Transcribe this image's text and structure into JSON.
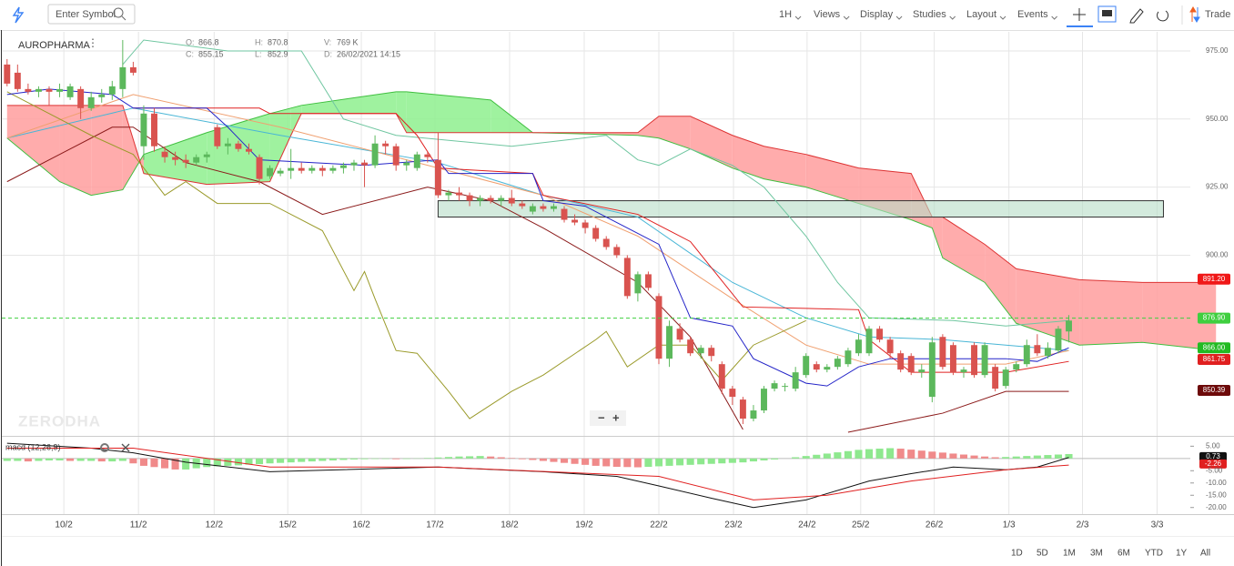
{
  "toolbar": {
    "search": "Enter Symbol",
    "menus": [
      "1H",
      "Views",
      "Display",
      "Studies",
      "Layout",
      "Events"
    ],
    "trade": "Trade"
  },
  "header": {
    "symbol": "AUROPHARMA",
    "fields": [
      {
        "key": "O:",
        "value": 866.8
      },
      {
        "key": "C:",
        "value": 855.15
      },
      {
        "key": "H:",
        "value": 870.8
      },
      {
        "key": "L:",
        "value": 852.9
      },
      {
        "key": "V:",
        "value": "769 K"
      },
      {
        "key": "D:",
        "value": "26/02/2021 14:15"
      }
    ]
  },
  "watermark": "ZERODHA",
  "ranges": [
    "1D",
    "5D",
    "1M",
    "3M",
    "6M",
    "YTD",
    "1Y",
    "All"
  ],
  "chart_data": {
    "type": "candlestick",
    "up_color": "#5cb85c",
    "down_color": "#d9534f",
    "xlim": [
      -0.5,
      115.5
    ],
    "ylim": [
      834,
      982
    ],
    "grid": true,
    "xticks": [
      {
        "value": 5.4,
        "label": "10/2"
      },
      {
        "value": 12.5,
        "label": "11/2"
      },
      {
        "value": 19.7,
        "label": "12/2"
      },
      {
        "value": 26.7,
        "label": "15/2"
      },
      {
        "value": 33.7,
        "label": "16/2"
      },
      {
        "value": 40.7,
        "label": "17/2"
      },
      {
        "value": 47.8,
        "label": "18/2"
      },
      {
        "value": 54.9,
        "label": "19/2"
      },
      {
        "value": 62.0,
        "label": "22/2"
      },
      {
        "value": 69.1,
        "label": "23/2"
      },
      {
        "value": 76.1,
        "label": "24/2"
      },
      {
        "value": 81.2,
        "label": "25/2"
      },
      {
        "value": 88.2,
        "label": "26/2"
      },
      {
        "value": 95.3,
        "label": "1/3"
      },
      {
        "value": 102.3,
        "label": "2/3"
      },
      {
        "value": 109.4,
        "label": "3/3"
      }
    ],
    "yticks": [
      {
        "value": 975,
        "label": "975.00"
      },
      {
        "value": 950,
        "label": "950.00"
      },
      {
        "value": 925,
        "label": "925.00"
      },
      {
        "value": 900,
        "label": "900.00"
      }
    ],
    "open": [
      970,
      967,
      961,
      960,
      961,
      960,
      958,
      961,
      954,
      958,
      959,
      961,
      969,
      940,
      952,
      938,
      936,
      935,
      934,
      936,
      947,
      940,
      941,
      939,
      936,
      929,
      930,
      931,
      932,
      931,
      932,
      931,
      932,
      933,
      934,
      933,
      941,
      940,
      933,
      932,
      937,
      935,
      922,
      923,
      922,
      920,
      921,
      920,
      921,
      919,
      916,
      918,
      917,
      917,
      913,
      912,
      910,
      906,
      903,
      899,
      886,
      893,
      885,
      862,
      873,
      869,
      864,
      866,
      860,
      851,
      847,
      840,
      843,
      851,
      852,
      851,
      856,
      860,
      858,
      859,
      860,
      864,
      864,
      873,
      869,
      864,
      863,
      857,
      848,
      870,
      867,
      857,
      867,
      856,
      859,
      852,
      858,
      860,
      867,
      863,
      865,
      872
    ],
    "high": [
      972,
      970,
      963,
      962,
      962,
      963,
      963,
      962,
      960,
      961,
      964,
      979,
      971,
      955,
      954,
      940,
      938,
      937,
      937,
      938,
      948,
      943,
      942,
      941,
      937,
      933,
      932,
      939,
      934,
      933,
      933,
      933,
      934,
      935,
      935,
      944,
      942,
      941,
      935,
      938,
      938,
      945,
      924,
      925,
      923,
      922,
      922,
      922,
      924,
      920,
      919,
      919,
      919,
      918,
      915,
      913,
      911,
      907,
      904,
      900,
      894,
      894,
      886,
      876,
      875,
      870,
      867,
      867,
      861,
      852,
      848,
      845,
      852,
      854,
      853,
      859,
      864,
      861,
      860,
      863,
      866,
      871,
      874,
      874,
      870,
      865,
      864,
      860,
      870,
      871,
      868,
      859,
      868,
      868,
      860,
      859,
      861,
      869,
      871,
      868,
      874,
      878
    ],
    "low": [
      962,
      960,
      959,
      958,
      955,
      958,
      957,
      950,
      953,
      956,
      957,
      958,
      966,
      935,
      938,
      934,
      933,
      932,
      933,
      934,
      939,
      937,
      938,
      937,
      926,
      928,
      929,
      928,
      930,
      930,
      929,
      930,
      930,
      931,
      925,
      932,
      937,
      931,
      931,
      931,
      934,
      921,
      920,
      920,
      918,
      918,
      919,
      918,
      918,
      917,
      915,
      916,
      916,
      912,
      911,
      908,
      905,
      902,
      899,
      884,
      883,
      887,
      860,
      859,
      868,
      863,
      862,
      861,
      849,
      845,
      838,
      839,
      842,
      850,
      850,
      850,
      855,
      857,
      857,
      858,
      859,
      863,
      863,
      868,
      862,
      857,
      856,
      855,
      846,
      858,
      856,
      855,
      855,
      855,
      850,
      851,
      857,
      859,
      863,
      862,
      864,
      868
    ],
    "close": [
      963,
      961,
      960,
      961,
      960,
      961,
      962,
      954,
      958,
      959,
      962,
      969,
      967,
      952,
      940,
      936,
      935,
      934,
      936,
      937,
      940,
      941,
      939,
      938,
      928,
      932,
      931,
      932,
      931,
      932,
      931,
      932,
      933,
      934,
      933,
      941,
      940,
      933,
      934,
      937,
      936,
      922,
      923,
      922,
      920,
      921,
      920,
      921,
      919,
      918,
      918,
      917,
      918,
      913,
      912,
      910,
      906,
      903,
      900,
      885,
      893,
      888,
      862,
      874,
      869,
      864,
      866,
      863,
      851,
      848,
      840,
      843,
      851,
      853,
      852,
      857,
      863,
      858,
      859,
      862,
      865,
      869,
      873,
      869,
      864,
      858,
      857,
      858,
      868,
      859,
      857,
      858,
      856,
      867,
      851,
      858,
      860,
      867,
      864,
      866,
      873,
      876
    ],
    "cloud": {
      "up_color": "#8ef08e",
      "down_color": "#ff9d9d",
      "a_color": "#3fbf3f",
      "b_color": "#d33",
      "x": [
        0,
        5,
        8,
        11,
        13,
        19,
        25,
        27,
        28,
        37,
        38,
        46,
        50,
        60,
        62,
        65,
        69,
        72,
        76,
        81,
        86,
        88,
        89,
        93,
        96,
        102,
        108,
        115
      ],
      "span_a": [
        943,
        927,
        922,
        924,
        937,
        945,
        952,
        954,
        955,
        960,
        960,
        957,
        945,
        944,
        943,
        939,
        932,
        928,
        925,
        919,
        913,
        910,
        899,
        890,
        875,
        867,
        868,
        865
      ],
      "span_b": [
        955,
        955,
        955,
        955,
        930,
        926,
        927,
        944,
        952,
        952,
        945,
        945,
        945,
        945,
        951,
        951,
        944,
        940,
        937,
        932,
        930,
        914,
        914,
        904,
        895,
        891,
        890,
        890
      ]
    },
    "overlays": [
      {
        "color": "#6fc6a0",
        "x": [
          11,
          13,
          21,
          28,
          32,
          37,
          48,
          57,
          60,
          62,
          65,
          69,
          72,
          76,
          79,
          82,
          90,
          95,
          101
        ],
        "values": [
          970,
          979,
          975,
          975,
          950,
          944,
          940,
          944,
          935,
          933,
          939,
          933,
          925,
          907,
          890,
          877,
          876,
          874,
          876
        ]
      },
      {
        "color": "#49b6d6",
        "x": [
          0,
          12,
          26,
          41,
          51,
          60,
          69,
          76,
          82,
          89,
          95,
          101
        ],
        "values": [
          943,
          954,
          944,
          934,
          922,
          914,
          890,
          877,
          870,
          869,
          867,
          865
        ]
      },
      {
        "color": "#f0a070",
        "x": [
          0,
          12,
          26,
          41,
          51,
          60,
          69,
          76,
          82,
          95,
          101
        ],
        "values": [
          943,
          959,
          947,
          932,
          922,
          907,
          884,
          867,
          860,
          860,
          865
        ]
      },
      {
        "color": "#8b1a1a",
        "x": [
          0,
          5,
          10,
          12,
          17,
          24,
          30,
          40,
          46,
          51,
          60,
          65,
          70,
          75,
          80,
          89,
          95,
          101
        ],
        "values": [
          927,
          937,
          947,
          947,
          934,
          927,
          915,
          925,
          920,
          910,
          890,
          870,
          836,
          null,
          835,
          842,
          850,
          850
        ]
      },
      {
        "color": "#9a9a2a",
        "x": [
          0,
          8,
          12,
          15,
          17,
          20,
          25,
          30,
          33,
          34,
          35,
          37,
          39,
          42,
          44,
          48,
          51,
          56,
          57,
          59,
          62,
          65,
          68,
          71,
          76
        ],
        "values": [
          960,
          944,
          937,
          922,
          927,
          919,
          919,
          909,
          887,
          894,
          884,
          865,
          864,
          850,
          840,
          850,
          856,
          869,
          872,
          859,
          867,
          867,
          854,
          867,
          876
        ]
      },
      {
        "color": "#e02020",
        "x": [
          12,
          24,
          25,
          37,
          39,
          41,
          50,
          51,
          60,
          65,
          70,
          81,
          82,
          86,
          95,
          101
        ],
        "values": [
          954,
          954,
          952,
          952,
          944,
          932,
          930,
          922,
          915,
          905,
          881,
          880,
          869,
          857,
          857,
          861
        ]
      },
      {
        "color": "#2424c8",
        "x": [
          0,
          4,
          10,
          12,
          19,
          21,
          24,
          34,
          41,
          42,
          50,
          51,
          55,
          58,
          62,
          65,
          69,
          71,
          76,
          78,
          81,
          84,
          89,
          95,
          98,
          101
        ],
        "values": [
          959,
          961,
          959,
          954,
          954,
          947,
          935,
          933,
          935,
          930,
          930,
          920,
          918,
          912,
          904,
          877,
          874,
          862,
          853,
          852,
          859,
          862,
          862,
          862,
          861,
          866
        ]
      }
    ],
    "zones": [
      {
        "color": "#b5dcc6",
        "x": [
          41,
          110
        ],
        "y": [
          914,
          920
        ]
      }
    ],
    "price_labels": [
      {
        "value": 891.2,
        "label": "891.20",
        "color": "#f01818"
      },
      {
        "value": 876.9,
        "label": "876.90",
        "color": "#3fcf3f",
        "dashed": true
      },
      {
        "value": 866,
        "label": "866.00",
        "color": "#22bb22"
      },
      {
        "value": 861.75,
        "label": "861.75",
        "color": "#e02020"
      },
      {
        "value": 850.39,
        "label": "850.39",
        "color": "#6d0a0a"
      }
    ],
    "macd": {
      "title": "macd (12,26,9)",
      "ylim": [
        -22.7,
        8.1
      ],
      "yticks": [
        {
          "value": 5,
          "label": "5.00"
        },
        {
          "value": -5,
          "label": "-5.00"
        },
        {
          "value": -10,
          "label": "-10.00"
        },
        {
          "value": -15,
          "label": "-15.00"
        },
        {
          "value": -20,
          "label": "-20.00"
        }
      ],
      "line": {
        "color": "#111",
        "x": [
          0,
          8,
          12,
          17,
          25,
          41,
          51,
          58,
          62,
          67,
          71,
          76,
          82,
          86,
          90,
          95,
          98,
          101
        ],
        "values": [
          6.2,
          4.2,
          2.3,
          -1.5,
          -5.4,
          -3.5,
          -5.4,
          -7.3,
          -11.2,
          -16.2,
          -20,
          -16.9,
          -9.2,
          -6.2,
          -3.5,
          -4.6,
          -3.5,
          0.4
        ]
      },
      "signal": {
        "color": "#e02020",
        "x": [
          0,
          12,
          25,
          41,
          62,
          71,
          78,
          86,
          95,
          101
        ],
        "values": [
          4.2,
          4.2,
          -3.5,
          -3.5,
          -7.3,
          -16.9,
          -15,
          -9.2,
          -4.6,
          -2.7
        ]
      },
      "hist_up_color": "#8ee88e",
      "hist_down_color": "#f08a8a",
      "hist": [
        -1,
        -1,
        -1.2,
        -1,
        -0.8,
        -0.8,
        -1,
        -1,
        -1,
        -1.2,
        -1.2,
        -1,
        -2,
        -3,
        -3.5,
        -4,
        -4.5,
        -4.5,
        -4,
        -3.5,
        -3.2,
        -3,
        -2.8,
        -2.5,
        -2.3,
        -2,
        -1.8,
        -1.6,
        -1.4,
        -1.2,
        -1,
        -0.8,
        -0.6,
        -0.4,
        -0.3,
        -0.2,
        -0.2,
        -0.3,
        -0.2,
        -0.1,
        0.2,
        0.4,
        0.6,
        0.8,
        0.9,
        1.0,
        0.8,
        0.5,
        0.2,
        -0.3,
        -0.6,
        -1,
        -1.4,
        -1.8,
        -2.2,
        -2.6,
        -3,
        -3.2,
        -3.4,
        -3.5,
        -3.6,
        -3.4,
        -3.2,
        -3,
        -2.8,
        -2.6,
        -2.4,
        -2.2,
        -2,
        -1.8,
        -1.6,
        -1.2,
        -0.8,
        -0.4,
        0,
        0.5,
        1,
        1.5,
        2,
        2.5,
        3,
        3.5,
        3.8,
        4,
        4.2,
        4,
        3.6,
        3.2,
        2.8,
        2.4,
        2,
        1.6,
        1.2,
        0.8,
        0.5,
        0.6,
        0.8,
        1,
        1.2,
        1.4,
        1.6,
        1.8
      ],
      "tags": [
        {
          "value": 0.73,
          "label": "0.73",
          "color": "#111"
        },
        {
          "value": -2.26,
          "label": "-2.26",
          "color": "#e02020"
        }
      ]
    }
  }
}
